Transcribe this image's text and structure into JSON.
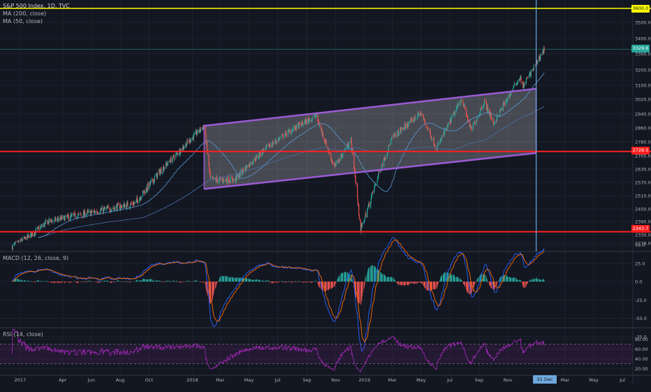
{
  "header": {
    "symbol": "S&P 500 Index, 1D, TVC",
    "ma200": "MA (200, close)",
    "ma50": "MA (50, close)",
    "macd": "MACD (12, 26, close, 9)",
    "rsi": "RSI (14, close)"
  },
  "colors": {
    "background": "#131722",
    "grid": "#1e222d",
    "up": "#26a69a",
    "down": "#ef5350",
    "channel": "#9c5bd4",
    "support": "#ff1f1f",
    "target": "#ffff00",
    "cursor": "#6fa8dc",
    "rsi": "#9c27b0"
  },
  "price_tags": [
    {
      "label": "3600.0",
      "value": 3600,
      "kind": "target"
    },
    {
      "label": "3329.6",
      "value": 3329.6,
      "kind": "last"
    },
    {
      "label": "2728.5",
      "value": 2728.5,
      "kind": "support"
    },
    {
      "label": "2343.7",
      "value": 2343.7,
      "kind": "support"
    }
  ],
  "date_tag": "31 Dec '19",
  "chart_data": [
    {
      "type": "candlestick",
      "title": "S&P 500 Index, 1D, TVC",
      "price_ticks": [
        "3500.0",
        "3400.0",
        "3300.0",
        "3200.0",
        "3100.0",
        "3020.0",
        "2940.0",
        "2860.0",
        "2780.0",
        "2705.0",
        "2630.0",
        "2570.0",
        "2510.0",
        "2450.0",
        "2390.0",
        "2330.0",
        "2278.0"
      ],
      "x_ticks": [
        "2017",
        "Apr",
        "Jun",
        "Aug",
        "Oct",
        "2018",
        "Mar",
        "May",
        "Jul",
        "Sep",
        "Nov",
        "2019",
        "Mar",
        "May",
        "Jul",
        "Sep",
        "Nov",
        "Mar",
        "May",
        "Jul"
      ],
      "anchors": [
        {
          "date": "2016-12-15",
          "close": 2262
        },
        {
          "date": "2017-03-01",
          "close": 2390
        },
        {
          "date": "2017-06-15",
          "close": 2440
        },
        {
          "date": "2017-09-01",
          "close": 2475
        },
        {
          "date": "2018-01-26",
          "close": 2872
        },
        {
          "date": "2018-02-08",
          "close": 2581
        },
        {
          "date": "2018-04-02",
          "close": 2582
        },
        {
          "date": "2018-06-01",
          "close": 2735
        },
        {
          "date": "2018-08-01",
          "close": 2850
        },
        {
          "date": "2018-09-20",
          "close": 2930
        },
        {
          "date": "2018-10-29",
          "close": 2641
        },
        {
          "date": "2018-12-03",
          "close": 2790
        },
        {
          "date": "2018-12-24",
          "close": 2351
        },
        {
          "date": "2019-03-01",
          "close": 2803
        },
        {
          "date": "2019-04-30",
          "close": 2945
        },
        {
          "date": "2019-06-03",
          "close": 2744
        },
        {
          "date": "2019-07-26",
          "close": 3025
        },
        {
          "date": "2019-08-15",
          "close": 2847
        },
        {
          "date": "2019-09-12",
          "close": 3009
        },
        {
          "date": "2019-10-02",
          "close": 2887
        },
        {
          "date": "2019-11-27",
          "close": 3153
        },
        {
          "date": "2019-12-03",
          "close": 3093
        },
        {
          "date": "2020-01-17",
          "close": 3329.6
        }
      ],
      "moving_averages": [
        "MA (200, close)",
        "MA (50, close)"
      ],
      "channel": {
        "upper": [
          {
            "date": "2018-01-26",
            "value": 2872
          },
          {
            "date": "2019-12-31",
            "value": 3080
          }
        ],
        "lower": [
          {
            "date": "2018-01-26",
            "value": 2540
          },
          {
            "date": "2019-12-31",
            "value": 2720
          }
        ]
      },
      "horizontal_lines": [
        3600,
        2728.5,
        2343.7
      ],
      "cursor_date": "2019-12-31"
    },
    {
      "type": "line",
      "title": "MACD (12, 26, close, 9)",
      "y_ticks": [
        "50.0",
        "25.0",
        "0.0",
        "-25.0",
        "-50.0",
        "-75.0"
      ]
    },
    {
      "type": "line",
      "title": "RSI (14, close)",
      "y_ticks": [
        "80.00",
        "60.00",
        "40.00",
        "20.00"
      ],
      "bands": [
        70,
        30
      ]
    }
  ]
}
